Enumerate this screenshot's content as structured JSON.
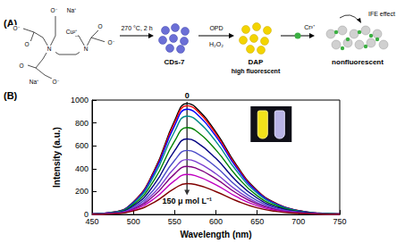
{
  "scheme": {
    "panel_label": "(A)",
    "structure_labels": [
      "O⁻",
      "Na⁺",
      "Cu²⁺",
      "O⁻",
      "O",
      "N",
      "N",
      "O",
      "O⁻",
      "O",
      "Na⁺",
      "O⁻"
    ],
    "step1": "270 °C, 2 h",
    "product1": "CDs-7",
    "reagent_top": "OPD",
    "reagent_bottom": "H₂O₂",
    "product2": "DAP",
    "product2_note": "high fluorescent",
    "ion": "Cr³⁺",
    "effect": "IFE effect",
    "product3": "nonfluorescent"
  },
  "chart_data": {
    "panel_label": "(B)",
    "type": "line",
    "xlabel": "Wavelength (nm)",
    "ylabel": "Intensity (a.u.)",
    "x": [
      450,
      475,
      500,
      525,
      550,
      565,
      575,
      600,
      625,
      650,
      675,
      700,
      725,
      750
    ],
    "series": [
      {
        "color": "#000000",
        "values": [
          5,
          20,
          110,
          380,
          820,
          970,
          940,
          720,
          430,
          210,
          90,
          35,
          12,
          5
        ]
      },
      {
        "color": "#ff0000",
        "values": [
          5,
          19,
          107,
          372,
          803,
          950,
          921,
          705,
          421,
          205,
          88,
          34,
          11,
          5
        ]
      },
      {
        "color": "#0000ff",
        "values": [
          5,
          18,
          104,
          361,
          777,
          920,
          891,
          683,
          408,
          199,
          86,
          33,
          11,
          5
        ]
      },
      {
        "color": "#008b8b",
        "values": [
          4,
          17,
          97,
          337,
          727,
          860,
          833,
          638,
          381,
          186,
          80,
          31,
          10,
          4
        ]
      },
      {
        "color": "#008000",
        "values": [
          4,
          15,
          86,
          298,
          642,
          760,
          736,
          564,
          337,
          164,
          71,
          27,
          9,
          4
        ]
      },
      {
        "color": "#000080",
        "values": [
          3,
          13,
          75,
          259,
          558,
          660,
          640,
          490,
          292,
          143,
          61,
          24,
          8,
          3
        ]
      },
      {
        "color": "#4b4bc8",
        "values": [
          3,
          11,
          63,
          220,
          473,
          560,
          543,
          416,
          248,
          121,
          52,
          20,
          7,
          3
        ]
      },
      {
        "color": "#7b3fd0",
        "values": [
          2,
          10,
          54,
          188,
          406,
          480,
          465,
          356,
          213,
          104,
          45,
          17,
          6,
          2
        ]
      },
      {
        "color": "#800080",
        "values": [
          2,
          8,
          47,
          165,
          355,
          420,
          407,
          312,
          186,
          91,
          39,
          15,
          5,
          2
        ]
      },
      {
        "color": "#c000c0",
        "values": [
          2,
          7,
          40,
          137,
          296,
          350,
          339,
          260,
          155,
          76,
          33,
          13,
          4,
          2
        ]
      },
      {
        "color": "#800000",
        "values": [
          1,
          5,
          31,
          106,
          228,
          270,
          262,
          200,
          120,
          58,
          25,
          10,
          3,
          1
        ]
      }
    ],
    "xlim": [
      450,
      750
    ],
    "ylim": [
      0,
      1000
    ],
    "xticks": [
      450,
      500,
      550,
      600,
      650,
      700,
      750
    ],
    "yticks": [
      0,
      200,
      400,
      600,
      800,
      1000
    ],
    "grid": false,
    "annotations": [
      "0",
      "150 μ mol L⁻¹"
    ]
  }
}
